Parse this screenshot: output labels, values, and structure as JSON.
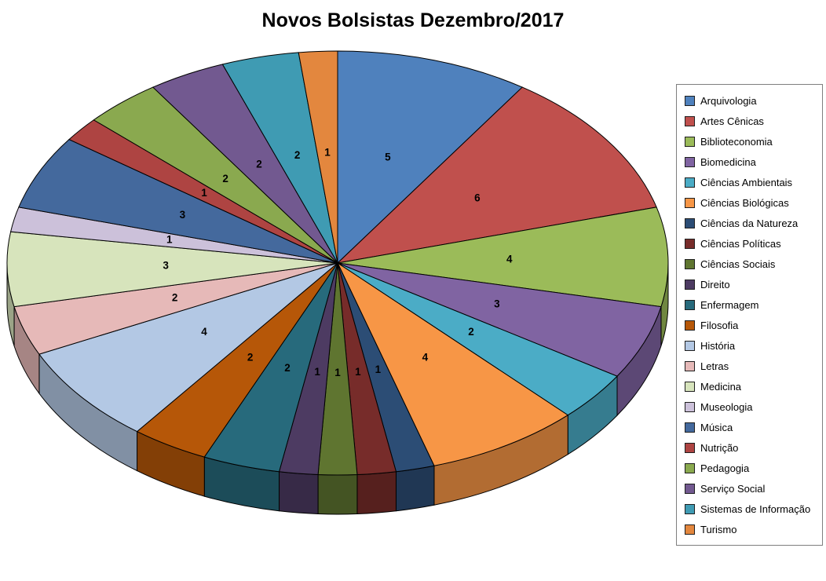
{
  "page": {
    "background": "#FFFFFF"
  },
  "chart_data": {
    "type": "pie",
    "title": "Novos Bolsistas Dezembro/2017",
    "effect": "3d",
    "direction": "clockwise",
    "start_angle_deg": 0,
    "legend_position": "right",
    "data_labels": "value",
    "total": 53,
    "slices": [
      {
        "label": "Arquivologia",
        "value": 5,
        "color": "#4F81BD"
      },
      {
        "label": "Artes Cênicas",
        "value": 6,
        "color": "#C0504D"
      },
      {
        "label": "Biblioteconomia",
        "value": 4,
        "color": "#9BBB59"
      },
      {
        "label": "Biomedicina",
        "value": 3,
        "color": "#8064A2"
      },
      {
        "label": "Ciências Ambientais",
        "value": 2,
        "color": "#4BACC6"
      },
      {
        "label": "Ciências Biológicas",
        "value": 4,
        "color": "#F79646"
      },
      {
        "label": "Ciências da Natureza",
        "value": 1,
        "color": "#2C4D75"
      },
      {
        "label": "Ciências Políticas",
        "value": 1,
        "color": "#772C2A"
      },
      {
        "label": "Ciências Sociais",
        "value": 1,
        "color": "#5F7530"
      },
      {
        "label": "Direito",
        "value": 1,
        "color": "#4D3B62"
      },
      {
        "label": "Enfermagem",
        "value": 2,
        "color": "#276A7C"
      },
      {
        "label": "Filosofia",
        "value": 2,
        "color": "#B65708"
      },
      {
        "label": "História",
        "value": 4,
        "color": "#B3C8E4"
      },
      {
        "label": "Letras",
        "value": 2,
        "color": "#E6B9B8"
      },
      {
        "label": "Medicina",
        "value": 3,
        "color": "#D7E4BC"
      },
      {
        "label": "Museologia",
        "value": 1,
        "color": "#CCC1DA"
      },
      {
        "label": "Música",
        "value": 3,
        "color": "#44699D"
      },
      {
        "label": "Nutrição",
        "value": 1,
        "color": "#AE4442"
      },
      {
        "label": "Pedagogia",
        "value": 2,
        "color": "#8AA94F"
      },
      {
        "label": "Serviço Social",
        "value": 2,
        "color": "#725990"
      },
      {
        "label": "Sistemas de Informação",
        "value": 2,
        "color": "#3F9BB3"
      },
      {
        "label": "Turismo",
        "value": 1,
        "color": "#E3873E"
      }
    ]
  }
}
